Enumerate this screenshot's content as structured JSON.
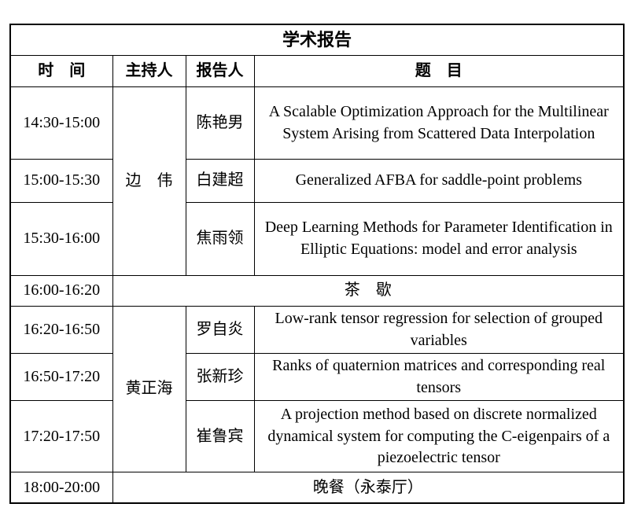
{
  "table": {
    "title": "学术报告",
    "headers": {
      "time": "时　间",
      "host": "主持人",
      "speaker": "报告人",
      "topic": "题　目"
    },
    "rows": [
      {
        "time": "14:30-15:00",
        "host": "边　伟",
        "speaker": "陈艳男",
        "topic": "A Scalable Optimization Approach for the Multilinear System Arising from Scattered Data Interpolation"
      },
      {
        "time": "15:00-15:30",
        "speaker": "白建超",
        "topic": "Generalized AFBA for saddle-point problems"
      },
      {
        "time": "15:30-16:00",
        "speaker": "焦雨领",
        "topic": "Deep Learning Methods for Parameter Identification in Elliptic Equations: model and error analysis"
      },
      {
        "time": "16:00-16:20",
        "label": "茶　歇"
      },
      {
        "time": "16:20-16:50",
        "host": "黄正海",
        "speaker": "罗自炎",
        "topic": "Low-rank tensor regression for selection of grouped variables"
      },
      {
        "time": "16:50-17:20",
        "speaker": "张新珍",
        "topic": "Ranks of quaternion matrices and corresponding real tensors"
      },
      {
        "time": "17:20-17:50",
        "speaker": "崔鲁宾",
        "topic": "A projection method based on discrete normalized dynamical system for computing the C-eigenpairs of a piezoelectric tensor"
      },
      {
        "time": "18:00-20:00",
        "label": "晚餐（永泰厅）"
      }
    ],
    "colors": {
      "border": "#000000",
      "text": "#000000",
      "background": "#ffffff"
    }
  }
}
